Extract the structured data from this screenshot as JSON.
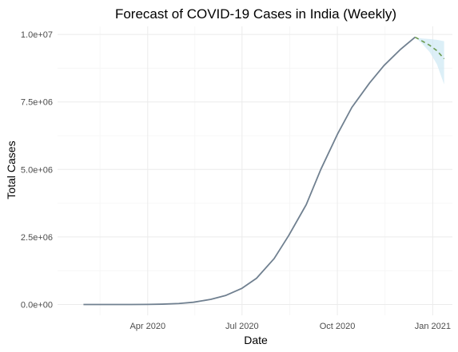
{
  "chart_data": {
    "type": "line",
    "title": "Forecast of COVID-19 Cases in India (Weekly)",
    "xlabel": "Date",
    "ylabel": "Total Cases",
    "x_ticks": [
      {
        "date": "2020-04-01",
        "label": "Apr 2020"
      },
      {
        "date": "2020-07-01",
        "label": "Jul 2020"
      },
      {
        "date": "2020-10-01",
        "label": "Oct 2020"
      },
      {
        "date": "2021-01-01",
        "label": "Jan 2021"
      }
    ],
    "y_ticks": [
      {
        "value": 0,
        "label": "0.0e+00"
      },
      {
        "value": 2500000,
        "label": "2.5e+06"
      },
      {
        "value": 5000000,
        "label": "5.0e+06"
      },
      {
        "value": 7500000,
        "label": "7.5e+06"
      },
      {
        "value": 10000000,
        "label": "1.0e+07"
      }
    ],
    "xlim": [
      "2020-01-05",
      "2021-01-20"
    ],
    "ylim": [
      -400000,
      10300000
    ],
    "grid": true,
    "series": [
      {
        "role": "actual",
        "color": "#708090",
        "points": [
          [
            "2020-01-30",
            0
          ],
          [
            "2020-03-01",
            3
          ],
          [
            "2020-03-15",
            110
          ],
          [
            "2020-04-01",
            2000
          ],
          [
            "2020-04-15",
            12000
          ],
          [
            "2020-05-01",
            35000
          ],
          [
            "2020-05-15",
            82000
          ],
          [
            "2020-06-01",
            190000
          ],
          [
            "2020-06-15",
            330000
          ],
          [
            "2020-07-01",
            600000
          ],
          [
            "2020-07-15",
            970000
          ],
          [
            "2020-08-01",
            1700000
          ],
          [
            "2020-08-15",
            2550000
          ],
          [
            "2020-09-01",
            3700000
          ],
          [
            "2020-09-15",
            5000000
          ],
          [
            "2020-10-01",
            6300000
          ],
          [
            "2020-10-15",
            7300000
          ],
          [
            "2020-11-01",
            8200000
          ],
          [
            "2020-11-15",
            8850000
          ],
          [
            "2020-12-01",
            9450000
          ],
          [
            "2020-12-15",
            9900000
          ]
        ]
      },
      {
        "role": "forecast",
        "color": "#6b9b4e",
        "points": [
          [
            "2020-12-15",
            9900000
          ],
          [
            "2020-12-22",
            9750000
          ],
          [
            "2020-12-29",
            9600000
          ],
          [
            "2021-01-05",
            9400000
          ],
          [
            "2021-01-12",
            9100000
          ]
        ]
      }
    ],
    "forecast_interval": {
      "color": "#cde8f3",
      "upper": [
        [
          "2020-12-15",
          9900000
        ],
        [
          "2020-12-22",
          9850000
        ],
        [
          "2020-12-29",
          9830000
        ],
        [
          "2021-01-05",
          9800000
        ],
        [
          "2021-01-12",
          9750000
        ]
      ],
      "lower": [
        [
          "2020-12-15",
          9900000
        ],
        [
          "2020-12-22",
          9650000
        ],
        [
          "2020-12-29",
          9350000
        ],
        [
          "2021-01-05",
          8900000
        ],
        [
          "2021-01-12",
          8150000
        ]
      ]
    }
  }
}
